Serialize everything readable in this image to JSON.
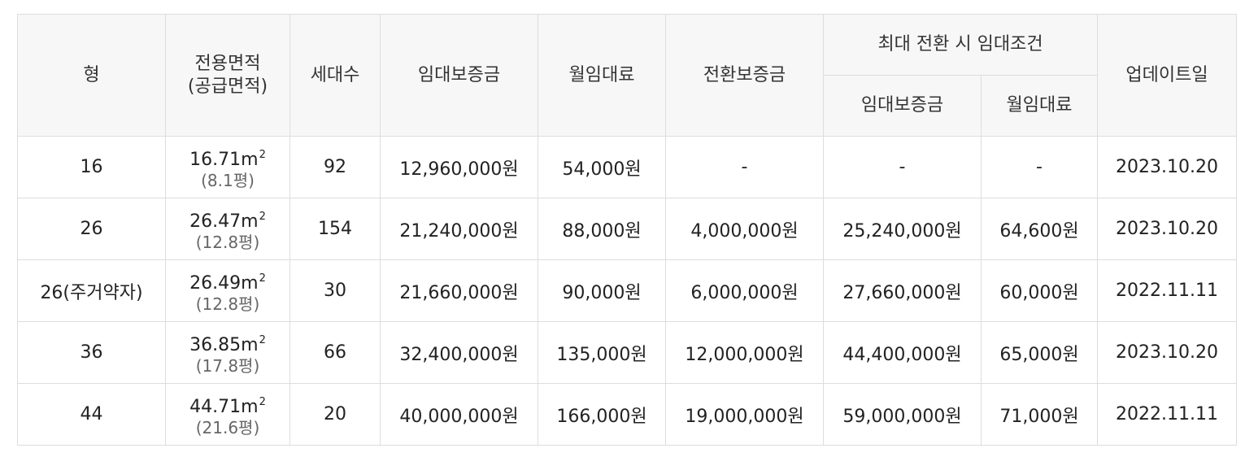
{
  "headers": {
    "type": "형",
    "area_line1": "전용면적",
    "area_line2": "(공급면적)",
    "households": "세대수",
    "deposit": "임대보증금",
    "monthly_rent": "월임대료",
    "conversion_deposit": "전환보증금",
    "max_conversion_group": "최대 전환 시 임대조건",
    "max_deposit": "임대보증금",
    "max_monthly_rent": "월임대료",
    "updated": "업데이트일"
  },
  "rows": [
    {
      "type": "16",
      "area": "16.71",
      "area_unit": "m",
      "area_sup": "2",
      "supply_area": "(8.1평)",
      "households": "92",
      "deposit": "12,960,000원",
      "monthly_rent": "54,000원",
      "conversion_deposit": "-",
      "max_deposit": "-",
      "max_monthly_rent": "-",
      "updated": "2023.10.20"
    },
    {
      "type": "26",
      "area": "26.47",
      "area_unit": "m",
      "area_sup": "2",
      "supply_area": "(12.8평)",
      "households": "154",
      "deposit": "21,240,000원",
      "monthly_rent": "88,000원",
      "conversion_deposit": "4,000,000원",
      "max_deposit": "25,240,000원",
      "max_monthly_rent": "64,600원",
      "updated": "2023.10.20"
    },
    {
      "type": "26(주거약자)",
      "area": "26.49",
      "area_unit": "m",
      "area_sup": "2",
      "supply_area": "(12.8평)",
      "households": "30",
      "deposit": "21,660,000원",
      "monthly_rent": "90,000원",
      "conversion_deposit": "6,000,000원",
      "max_deposit": "27,660,000원",
      "max_monthly_rent": "60,000원",
      "updated": "2022.11.11"
    },
    {
      "type": "36",
      "area": "36.85",
      "area_unit": "m",
      "area_sup": "2",
      "supply_area": "(17.8평)",
      "households": "66",
      "deposit": "32,400,000원",
      "monthly_rent": "135,000원",
      "conversion_deposit": "12,000,000원",
      "max_deposit": "44,400,000원",
      "max_monthly_rent": "65,000원",
      "updated": "2023.10.20"
    },
    {
      "type": "44",
      "area": "44.71",
      "area_unit": "m",
      "area_sup": "2",
      "supply_area": "(21.6평)",
      "households": "20",
      "deposit": "40,000,000원",
      "monthly_rent": "166,000원",
      "conversion_deposit": "19,000,000원",
      "max_deposit": "59,000,000원",
      "max_monthly_rent": "71,000원",
      "updated": "2022.11.11"
    }
  ]
}
